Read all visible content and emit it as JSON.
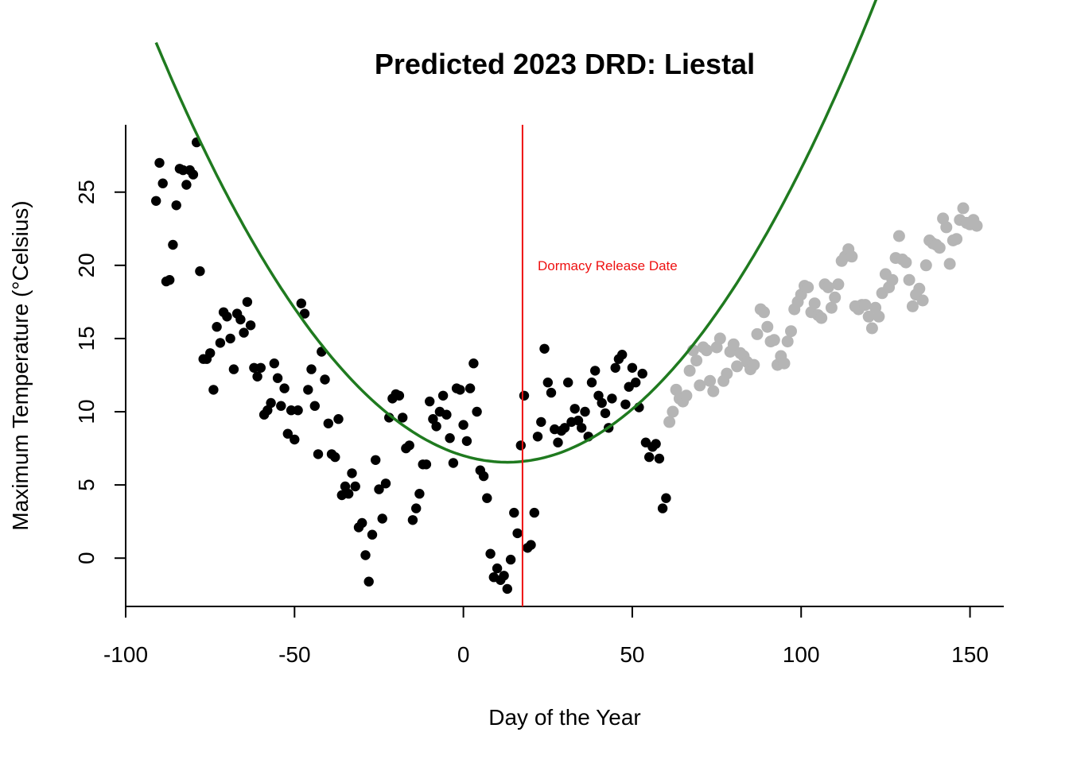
{
  "chart_data": {
    "type": "scatter",
    "title": "Predicted 2023 DRD: Liestal",
    "xlabel": "Day of the Year",
    "ylabel": "Maximum Temperature (°Celsius)",
    "xlim": [
      -100,
      160
    ],
    "ylim": [
      -3.3,
      29.6
    ],
    "x_ticks": [
      -100,
      -50,
      0,
      50,
      100,
      150
    ],
    "y_ticks": [
      0,
      5,
      10,
      15,
      20,
      25
    ],
    "grid": false,
    "annotation": {
      "text": "Dormacy Release Date",
      "x": 22,
      "y": 20.0
    },
    "vline": {
      "x": 17.5,
      "color": "#ee1111"
    },
    "curve": {
      "color": "#1f7a1f",
      "a": 0.00265,
      "h": 13,
      "k": 6.55,
      "x_from": -91,
      "x_to": 153
    },
    "series": [
      {
        "color": "#000000",
        "points": [
          [
            -91,
            24.4
          ],
          [
            -90,
            27.0
          ],
          [
            -89,
            25.6
          ],
          [
            -88,
            18.9
          ],
          [
            -87,
            19.0
          ],
          [
            -86,
            21.4
          ],
          [
            -85,
            24.1
          ],
          [
            -84,
            26.6
          ],
          [
            -83,
            26.5
          ],
          [
            -82,
            25.5
          ],
          [
            -81,
            26.5
          ],
          [
            -80,
            26.2
          ],
          [
            -79,
            28.4
          ],
          [
            -78,
            19.6
          ],
          [
            -77,
            13.6
          ],
          [
            -76,
            13.6
          ],
          [
            -75,
            14.0
          ],
          [
            -74,
            11.5
          ],
          [
            -73,
            15.8
          ],
          [
            -72,
            14.7
          ],
          [
            -71,
            16.8
          ],
          [
            -70,
            16.5
          ],
          [
            -69,
            15.0
          ],
          [
            -68,
            12.9
          ],
          [
            -67,
            16.7
          ],
          [
            -66,
            16.3
          ],
          [
            -65,
            15.4
          ],
          [
            -64,
            17.5
          ],
          [
            -63,
            15.9
          ],
          [
            -62,
            13.0
          ],
          [
            -61,
            12.4
          ],
          [
            -60,
            13.0
          ],
          [
            -59,
            9.8
          ],
          [
            -58,
            10.1
          ],
          [
            -57,
            10.6
          ],
          [
            -56,
            13.3
          ],
          [
            -55,
            12.3
          ],
          [
            -54,
            10.4
          ],
          [
            -53,
            11.6
          ],
          [
            -52,
            8.5
          ],
          [
            -51,
            10.1
          ],
          [
            -50,
            8.1
          ],
          [
            -49,
            10.1
          ],
          [
            -48,
            17.4
          ],
          [
            -47,
            16.7
          ],
          [
            -46,
            11.5
          ],
          [
            -45,
            12.9
          ],
          [
            -44,
            10.4
          ],
          [
            -43,
            7.1
          ],
          [
            -42,
            14.1
          ],
          [
            -41,
            12.2
          ],
          [
            -40,
            9.2
          ],
          [
            -39,
            7.1
          ],
          [
            -38,
            6.9
          ],
          [
            -37,
            9.5
          ],
          [
            -36,
            4.3
          ],
          [
            -35,
            4.9
          ],
          [
            -34,
            4.4
          ],
          [
            -33,
            5.8
          ],
          [
            -32,
            4.9
          ],
          [
            -31,
            2.1
          ],
          [
            -30,
            2.4
          ],
          [
            -29,
            0.2
          ],
          [
            -28,
            -1.6
          ],
          [
            -27,
            1.6
          ],
          [
            -26,
            6.7
          ],
          [
            -25,
            4.7
          ],
          [
            -24,
            2.7
          ],
          [
            -23,
            5.1
          ],
          [
            -22,
            9.6
          ],
          [
            -21,
            10.9
          ],
          [
            -20,
            11.2
          ],
          [
            -19,
            11.1
          ],
          [
            -18,
            9.6
          ],
          [
            -17,
            7.5
          ],
          [
            -16,
            7.7
          ],
          [
            -15,
            2.6
          ],
          [
            -14,
            3.4
          ],
          [
            -13,
            4.4
          ],
          [
            -12,
            6.4
          ],
          [
            -11,
            6.4
          ],
          [
            -10,
            10.7
          ],
          [
            -9,
            9.5
          ],
          [
            -8,
            9.0
          ],
          [
            -7,
            10.0
          ],
          [
            -6,
            11.1
          ],
          [
            -5,
            9.8
          ],
          [
            -4,
            8.2
          ],
          [
            -3,
            6.5
          ],
          [
            -2,
            11.6
          ],
          [
            -1,
            11.5
          ],
          [
            0,
            9.1
          ],
          [
            1,
            8.0
          ],
          [
            2,
            11.6
          ],
          [
            3,
            13.3
          ],
          [
            4,
            10.0
          ],
          [
            5,
            6.0
          ],
          [
            6,
            5.6
          ],
          [
            7,
            4.1
          ],
          [
            8,
            0.3
          ],
          [
            9,
            -1.3
          ],
          [
            10,
            -0.7
          ],
          [
            11,
            -1.5
          ],
          [
            12,
            -1.2
          ],
          [
            13,
            -2.1
          ],
          [
            14,
            -0.1
          ],
          [
            15,
            3.1
          ],
          [
            16,
            1.7
          ],
          [
            17,
            7.7
          ],
          [
            18,
            11.1
          ],
          [
            19,
            0.7
          ],
          [
            20,
            0.9
          ],
          [
            21,
            3.1
          ],
          [
            22,
            8.3
          ],
          [
            23,
            9.3
          ],
          [
            24,
            14.3
          ],
          [
            25,
            12.0
          ],
          [
            26,
            11.3
          ],
          [
            27,
            8.8
          ],
          [
            28,
            7.9
          ],
          [
            29,
            8.7
          ],
          [
            30,
            8.9
          ],
          [
            31,
            12.0
          ],
          [
            32,
            9.3
          ],
          [
            33,
            10.2
          ],
          [
            34,
            9.4
          ],
          [
            35,
            8.9
          ],
          [
            36,
            10.0
          ],
          [
            37,
            8.3
          ],
          [
            38,
            12.0
          ],
          [
            39,
            12.8
          ],
          [
            40,
            11.1
          ],
          [
            41,
            10.6
          ],
          [
            42,
            9.9
          ],
          [
            43,
            8.9
          ],
          [
            44,
            10.9
          ],
          [
            45,
            13.0
          ],
          [
            46,
            13.6
          ],
          [
            47,
            13.9
          ],
          [
            48,
            10.5
          ],
          [
            49,
            11.7
          ],
          [
            50,
            13.0
          ],
          [
            51,
            12.0
          ],
          [
            52,
            10.3
          ],
          [
            53,
            12.6
          ],
          [
            54,
            7.9
          ],
          [
            55,
            6.9
          ],
          [
            56,
            7.6
          ],
          [
            57,
            7.8
          ],
          [
            58,
            6.8
          ],
          [
            59,
            3.4
          ],
          [
            60,
            4.1
          ]
        ]
      },
      {
        "color": "#b5b5b5",
        "points": [
          [
            61,
            9.3
          ],
          [
            62,
            10.0
          ],
          [
            63,
            11.5
          ],
          [
            64,
            10.9
          ],
          [
            65,
            10.7
          ],
          [
            66,
            11.1
          ],
          [
            67,
            12.8
          ],
          [
            68,
            14.2
          ],
          [
            69,
            13.5
          ],
          [
            70,
            11.8
          ],
          [
            71,
            14.4
          ],
          [
            72,
            14.2
          ],
          [
            73,
            12.1
          ],
          [
            74,
            11.4
          ],
          [
            75,
            14.4
          ],
          [
            76,
            15.0
          ],
          [
            77,
            12.1
          ],
          [
            78,
            12.6
          ],
          [
            79,
            14.1
          ],
          [
            80,
            14.6
          ],
          [
            81,
            13.1
          ],
          [
            82,
            14.0
          ],
          [
            83,
            13.8
          ],
          [
            84,
            13.4
          ],
          [
            85,
            12.9
          ],
          [
            86,
            13.2
          ],
          [
            87,
            15.3
          ],
          [
            88,
            17.0
          ],
          [
            89,
            16.8
          ],
          [
            90,
            15.8
          ],
          [
            91,
            14.8
          ],
          [
            92,
            14.9
          ],
          [
            93,
            13.2
          ],
          [
            94,
            13.8
          ],
          [
            95,
            13.3
          ],
          [
            96,
            14.8
          ],
          [
            97,
            15.5
          ],
          [
            98,
            17.0
          ],
          [
            99,
            17.5
          ],
          [
            100,
            18.0
          ],
          [
            101,
            18.6
          ],
          [
            102,
            18.5
          ],
          [
            103,
            16.8
          ],
          [
            104,
            17.4
          ],
          [
            105,
            16.6
          ],
          [
            106,
            16.4
          ],
          [
            107,
            18.7
          ],
          [
            108,
            18.5
          ],
          [
            109,
            17.1
          ],
          [
            110,
            17.8
          ],
          [
            111,
            18.7
          ],
          [
            112,
            20.3
          ],
          [
            113,
            20.6
          ],
          [
            114,
            21.1
          ],
          [
            115,
            20.6
          ],
          [
            116,
            17.2
          ],
          [
            117,
            17.0
          ],
          [
            118,
            17.3
          ],
          [
            119,
            17.3
          ],
          [
            120,
            16.5
          ],
          [
            121,
            15.7
          ],
          [
            122,
            17.1
          ],
          [
            123,
            16.5
          ],
          [
            124,
            18.1
          ],
          [
            125,
            19.4
          ],
          [
            126,
            18.5
          ],
          [
            127,
            19.0
          ],
          [
            128,
            20.5
          ],
          [
            129,
            22.0
          ],
          [
            130,
            20.4
          ],
          [
            131,
            20.2
          ],
          [
            132,
            19.0
          ],
          [
            133,
            17.2
          ],
          [
            134,
            18.0
          ],
          [
            135,
            18.4
          ],
          [
            136,
            17.6
          ],
          [
            137,
            20.0
          ],
          [
            138,
            21.7
          ],
          [
            139,
            21.5
          ],
          [
            140,
            21.4
          ],
          [
            141,
            21.2
          ],
          [
            142,
            23.2
          ],
          [
            143,
            22.6
          ],
          [
            144,
            20.1
          ],
          [
            145,
            21.7
          ],
          [
            146,
            21.8
          ],
          [
            147,
            23.1
          ],
          [
            148,
            23.9
          ],
          [
            149,
            22.9
          ],
          [
            150,
            22.8
          ],
          [
            151,
            23.1
          ],
          [
            152,
            22.7
          ]
        ]
      }
    ]
  }
}
